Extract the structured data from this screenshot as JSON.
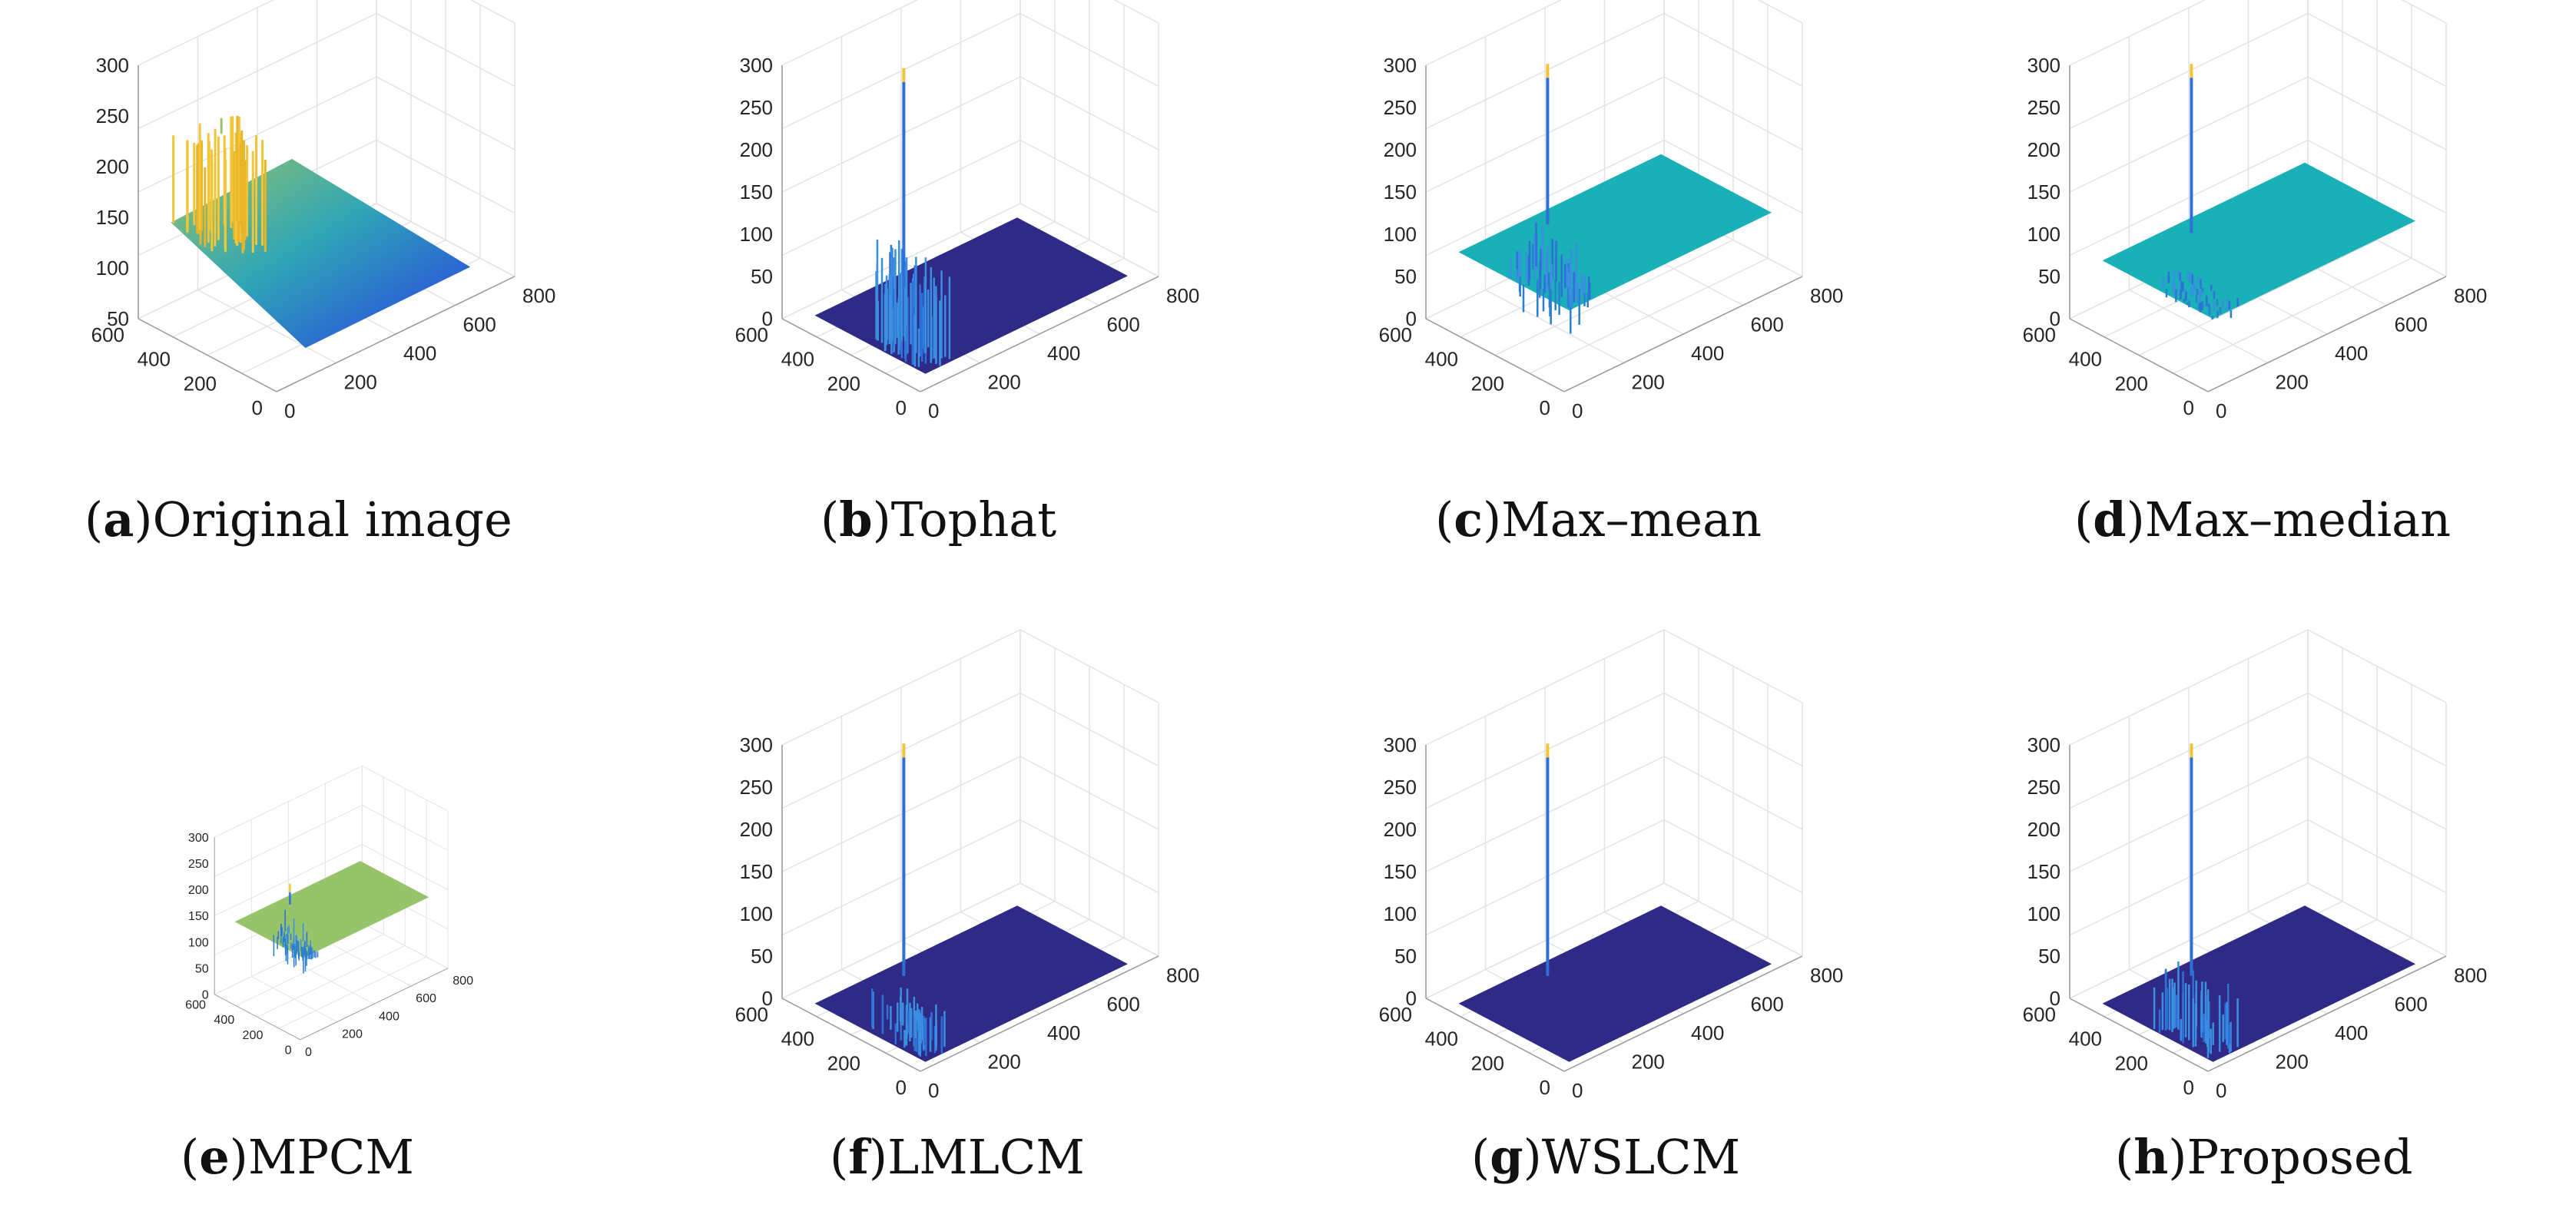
{
  "figure": {
    "description_free": true
  },
  "colors": {
    "grid": "#e3e3e3",
    "axis": "#9a9a9a",
    "floor": "#2e2a86",
    "teal": "#1ab0b8",
    "green": "#97c36a",
    "yellow": "#f2c538",
    "blue": "#2f6fd8"
  },
  "chart_data": [
    {
      "type": "surface",
      "id": "a",
      "letter": "a",
      "label": "Original image",
      "zlim": [
        50,
        300
      ],
      "zticks": [
        "50",
        "100",
        "150",
        "200",
        "250",
        "300"
      ],
      "yticks": [
        "0",
        "200",
        "400",
        "600"
      ],
      "xticks": [
        "0",
        "200",
        "400",
        "600",
        "800"
      ],
      "surface": "ramp",
      "peak_value": 215,
      "clutter_max": 230,
      "base_level": 150
    },
    {
      "type": "surface",
      "id": "b",
      "letter": "b",
      "label": "Tophat",
      "zlim": [
        0,
        300
      ],
      "zticks": [
        "0",
        "50",
        "100",
        "150",
        "200",
        "250",
        "300"
      ],
      "yticks": [
        "0",
        "200",
        "400",
        "600"
      ],
      "xticks": [
        "0",
        "200",
        "400",
        "600",
        "800"
      ],
      "surface": "flat-low",
      "peak_value": 270,
      "clutter_max": 140,
      "base_level": 10
    },
    {
      "type": "surface",
      "id": "c",
      "letter": "c",
      "label": "Max–mean",
      "zlim": [
        0,
        300
      ],
      "zticks": [
        "0",
        "50",
        "100",
        "150",
        "200",
        "250",
        "300"
      ],
      "yticks": [
        "0",
        "200",
        "400",
        "600"
      ],
      "xticks": [
        "0",
        "200",
        "400",
        "600",
        "800"
      ],
      "surface": "flat-mid",
      "peak_value": 275,
      "clutter_max": 140,
      "base_level": 85
    },
    {
      "type": "surface",
      "id": "d",
      "letter": "d",
      "label": "Max–median",
      "zlim": [
        0,
        300
      ],
      "zticks": [
        "0",
        "50",
        "100",
        "150",
        "200",
        "250",
        "300"
      ],
      "yticks": [
        "0",
        "200",
        "400",
        "600"
      ],
      "xticks": [
        "0",
        "200",
        "400",
        "600",
        "800"
      ],
      "surface": "flat-mid",
      "peak_value": 275,
      "clutter_max": 90,
      "base_level": 75
    },
    {
      "type": "surface",
      "id": "e",
      "letter": "e",
      "label": "MPCM",
      "zlim": [
        0,
        300
      ],
      "zticks": [
        "0",
        "50",
        "100",
        "150",
        "200",
        "250",
        "300"
      ],
      "yticks": [
        "0",
        "200",
        "400",
        "600"
      ],
      "xticks": [
        "0",
        "200",
        "400",
        "600",
        "800"
      ],
      "surface": "flat-high",
      "peak_value": 185,
      "clutter_max": 190,
      "base_level": 145
    },
    {
      "type": "surface",
      "id": "f",
      "letter": "f",
      "label": "LMLCM",
      "zlim": [
        0,
        300
      ],
      "zticks": [
        "0",
        "50",
        "100",
        "150",
        "200",
        "250",
        "300"
      ],
      "yticks": [
        "0",
        "200",
        "400",
        "600"
      ],
      "xticks": [
        "0",
        "200",
        "400",
        "600",
        "800"
      ],
      "surface": "flat-zero",
      "peak_value": 275,
      "clutter_max": 60,
      "base_level": 0
    },
    {
      "type": "surface",
      "id": "g",
      "letter": "g",
      "label": "WSLCM",
      "zlim": [
        0,
        300
      ],
      "zticks": [
        "0",
        "50",
        "100",
        "150",
        "200",
        "250",
        "300"
      ],
      "yticks": [
        "0",
        "200",
        "400",
        "600"
      ],
      "xticks": [
        "0",
        "200",
        "400",
        "600",
        "800"
      ],
      "surface": "flat-zero",
      "peak_value": 275,
      "clutter_max": 0,
      "base_level": 0
    },
    {
      "type": "surface",
      "id": "h",
      "letter": "h",
      "label": "Proposed",
      "zlim": [
        0,
        300
      ],
      "zticks": [
        "0",
        "50",
        "100",
        "150",
        "200",
        "250",
        "300"
      ],
      "yticks": [
        "0",
        "200",
        "400",
        "600"
      ],
      "xticks": [
        "0",
        "200",
        "400",
        "600",
        "800"
      ],
      "surface": "flat-zero",
      "peak_value": 275,
      "clutter_max": 85,
      "base_level": 0
    }
  ]
}
